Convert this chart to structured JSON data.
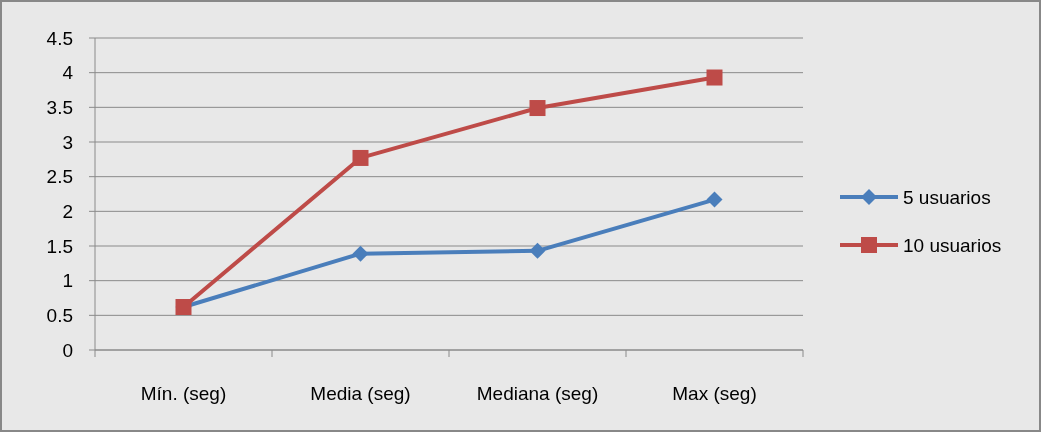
{
  "chart_data": {
    "type": "line",
    "categories": [
      "Mín. (seg)",
      "Media (seg)",
      "Mediana (seg)",
      "Max (seg)"
    ],
    "series": [
      {
        "name": "5 usuarios",
        "color": "#4a7ebb",
        "values": [
          0.62,
          1.39,
          1.43,
          2.17
        ],
        "marker": "diamond"
      },
      {
        "name": "10 usuarios",
        "color": "#be4b48",
        "values": [
          0.62,
          2.77,
          3.49,
          3.93
        ],
        "marker": "square"
      }
    ],
    "ylim": [
      0,
      4.5
    ],
    "yticks": [
      0,
      0.5,
      1,
      1.5,
      2,
      2.5,
      3,
      3.5,
      4,
      4.5
    ],
    "grid": "y",
    "legend": "right",
    "line_style": "solid"
  }
}
